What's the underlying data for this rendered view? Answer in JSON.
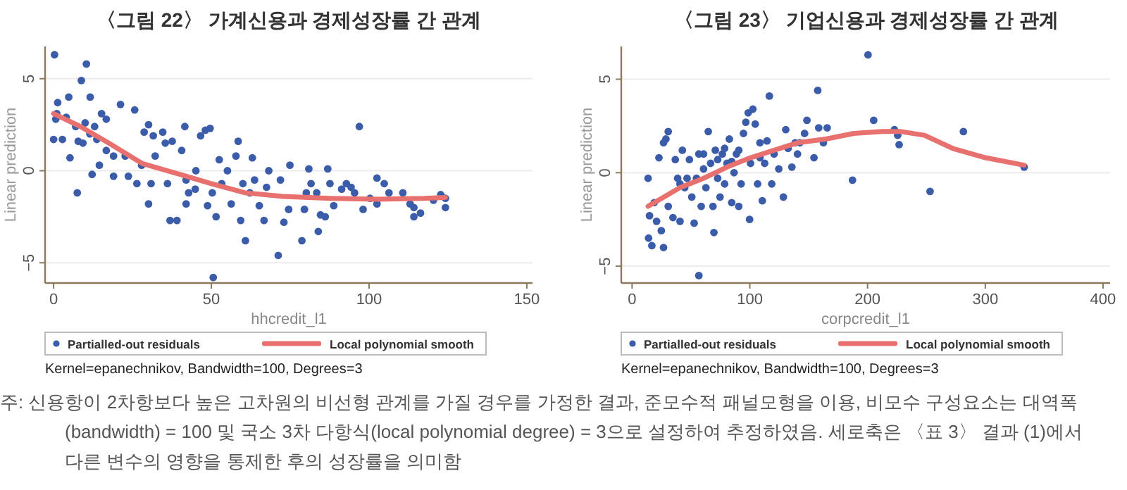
{
  "chart_data": [
    {
      "type": "scatter",
      "title": "〈그림 22〉 가계신용과 경제성장률 간 관계",
      "xlabel": "hhcredit_l1",
      "ylabel": "Linear prediction",
      "xlim": [
        -2.7,
        151.8
      ],
      "ylim": [
        -6.1,
        6.75
      ],
      "xticks": [
        0,
        50,
        100,
        150
      ],
      "yticks": [
        -5,
        0,
        5
      ],
      "grid": "y",
      "legend": "bottom",
      "series": [
        {
          "name": "Partialled-out residuals",
          "marker": "circle",
          "color": "#3b5ca8",
          "x": [
            0.3,
            10.4,
            8.8,
            1.3,
            4.8,
            11.6,
            21.2,
            25.7,
            0,
            0.7,
            2.8,
            5.2,
            7.5,
            7.8,
            10,
            13,
            15.2,
            16.7,
            14.5,
            12.2,
            19,
            19,
            16.7,
            22.7,
            23.7,
            26.4,
            27.9,
            28.7,
            30.1,
            31.6,
            30.1,
            30.9,
            34.6,
            35.4,
            32.2,
            36.1,
            36.9,
            39.1,
            37.6,
            40.6,
            41.6,
            42,
            42.8,
            42,
            45.1,
            46.6,
            48.1,
            49.6,
            44.9,
            48.8,
            50.3,
            50.6,
            51.5,
            52.5,
            53.3,
            55.1,
            56.3,
            58.5,
            57.8,
            59.3,
            60.8,
            60,
            62.2,
            63,
            63.7,
            65.2,
            66.7,
            67.5,
            68.2,
            71.2,
            71.9,
            73,
            74.5,
            74.9,
            78.7,
            79.5,
            80.1,
            80.9,
            81.6,
            83.4,
            83.9,
            84.6,
            86.1,
            86.9,
            87.6,
            88.8,
            91.3,
            92.8,
            94.3,
            95.4,
            96.9,
            98.1,
            100.3,
            102.5,
            102.5,
            104.8,
            106.3,
            110.7,
            113,
            114.2,
            114.2,
            116.3,
            120.4,
            122.7,
            124.2,
            124.2,
            4,
            7,
            9.3,
            11.5,
            13.7,
            1
          ],
          "values": [
            6.3,
            5.8,
            4.9,
            3.7,
            4.0,
            4.0,
            3.6,
            3.3,
            1.7,
            2.8,
            1.7,
            0.7,
            -1.2,
            1.6,
            2.6,
            2.4,
            3.1,
            2.8,
            0.3,
            -0.2,
            -0.3,
            0.8,
            1.1,
            0.8,
            -0.3,
            -0.7,
            0.3,
            2.1,
            2.5,
            1.9,
            -1.8,
            -0.7,
            2.1,
            1.5,
            0.8,
            -0.7,
            -2.7,
            -2.7,
            1.6,
            1.1,
            2.4,
            -0.5,
            -1.2,
            -1.8,
            0,
            1.9,
            2.2,
            2.3,
            -1.0,
            -1.9,
            -1.2,
            -5.8,
            -2.5,
            0.6,
            -0.7,
            0,
            -1.8,
            1.6,
            0.8,
            -2.7,
            -3.8,
            -0.7,
            -1.2,
            0.7,
            -0.5,
            -1.9,
            -2.7,
            -0.9,
            0,
            -4.6,
            -0.5,
            -2.8,
            -2.1,
            0.3,
            -3.8,
            -2.1,
            -1.2,
            0.1,
            -0.7,
            -1.2,
            -3.3,
            -2.4,
            -2.5,
            0.1,
            -0.7,
            -1.9,
            -1.0,
            -0.7,
            -0.9,
            -1.2,
            2.4,
            -2.1,
            -1.5,
            -1.8,
            -0.4,
            -0.7,
            -1.2,
            -1.2,
            -1.8,
            -2.5,
            -2.0,
            -2.3,
            -1.6,
            -1.3,
            -2.0,
            -1.5,
            2.9,
            2.4,
            1.5,
            2.0,
            1.7,
            3.1
          ]
        },
        {
          "name": "Local polynomial smooth",
          "type": "line",
          "color": "#e8706e",
          "x": [
            0,
            8.5,
            17.5,
            28,
            40,
            50,
            60.7,
            72.7,
            87.6,
            102.5,
            117.5,
            124.2
          ],
          "values": [
            3.1,
            2.4,
            1.5,
            0.4,
            -0.2,
            -0.7,
            -1.2,
            -1.4,
            -1.5,
            -1.55,
            -1.5,
            -1.45
          ]
        }
      ],
      "annotations": [
        "Kernel=epanechnikov,  Bandwidth=100,  Degrees=3",
        "주: 신용항이 2차항보다 높은 고차원의 비선형 관계를 가질 경우를 가정한 결과, 준모수적 패널모형을 이용, 비모수 구성요소는 대역폭 (bandwidth) = 100 및 국소 3차 다항식(local polynomial degree) = 3으로 설정하여 추정하였음. 세로축은 〈표 3〉 결과 (1)에서 다른 변수의 영향을 통제한 후의 성장률을 의미함"
      ]
    },
    {
      "type": "scatter",
      "title": "〈그림 23〉 기업신용과 경제성장률 간 관계",
      "xlabel": "corpcredit_l1",
      "ylabel": "Linear prediction",
      "xlim": [
        -9.2,
        406
      ],
      "ylim": [
        -5.9,
        6.75
      ],
      "xticks": [
        0,
        100,
        200,
        300,
        400
      ],
      "yticks": [
        -5,
        0,
        5
      ],
      "grid": "y",
      "legend": "bottom",
      "series": [
        {
          "name": "Partialled-out residuals",
          "marker": "circle",
          "color": "#3b5ca8",
          "x": [
            13.6,
            14.8,
            14,
            16.8,
            18.8,
            20.8,
            22.8,
            24.8,
            26.7,
            26.7,
            28.7,
            30.7,
            30.7,
            34.7,
            36.7,
            38.7,
            40.7,
            42.7,
            44.7,
            48.7,
            50.7,
            52.7,
            54.7,
            56.7,
            56.7,
            58.7,
            60.7,
            62.7,
            64.7,
            66.7,
            68.7,
            69.5,
            70.7,
            72.7,
            74.7,
            76.7,
            78.6,
            80.6,
            82.6,
            84.6,
            86.6,
            88.6,
            90.6,
            92.6,
            94.6,
            96.6,
            98.6,
            99.8,
            100.6,
            102.6,
            104.6,
            106.6,
            108.6,
            110.6,
            112.6,
            114.6,
            116.6,
            118.6,
            120.6,
            124.6,
            128.5,
            130.5,
            132.5,
            135.7,
            138.5,
            140.5,
            142.5,
            146.5,
            148.5,
            154.5,
            157.7,
            158.5,
            162.5,
            165.7,
            187.2,
            200.4,
            205.2,
            222.8,
            225.6,
            226.8,
            253.1,
            281.4,
            333,
            40.7,
            46.7,
            60.7,
            72.7,
            78.6,
            84.6,
            90.6,
            108.6
          ],
          "values": [
            -0.3,
            -2.3,
            -3.5,
            -3.9,
            -1.6,
            -2.6,
            0.8,
            -3.1,
            -4.0,
            1.6,
            1.8,
            2.2,
            -1.8,
            -2.4,
            0.7,
            -0.3,
            -2.6,
            1.2,
            -0.8,
            0.7,
            -1.3,
            -2.7,
            -0.3,
            -5.5,
            1.0,
            -1.8,
            0.2,
            -0.8,
            2.2,
            0.5,
            -1.8,
            -3.2,
            1.2,
            -0.3,
            -1.3,
            1.0,
            -0.6,
            0.5,
            1.8,
            -1.6,
            0,
            1.0,
            -1.8,
            -0.6,
            2.1,
            2.7,
            3.2,
            -2.5,
            0.5,
            3.4,
            2.6,
            -0.6,
            1.6,
            -1.5,
            0.5,
            1.7,
            4.1,
            -0.6,
            1.0,
            0.2,
            -1.3,
            2.3,
            1.3,
            0.3,
            1.6,
            1.0,
            1.6,
            2.1,
            2.8,
            0.8,
            4.4,
            2.4,
            1.6,
            2.4,
            -0.4,
            6.3,
            2.8,
            2.3,
            2.0,
            1.5,
            -1.0,
            2.2,
            0.3,
            -0.6,
            -0.3,
            1.0,
            0.7,
            1.3,
            0.6,
            1.2,
            0.8
          ]
        },
        {
          "name": "Local polynomial smooth",
          "type": "line",
          "color": "#e8706e",
          "x": [
            13.6,
            40.7,
            60.7,
            80.6,
            100.6,
            120.6,
            140.5,
            164.5,
            188.4,
            212.4,
            228.3,
            248.3,
            272.3,
            300.2,
            333
          ],
          "values": [
            -1.8,
            -0.8,
            -0.3,
            0.3,
            0.8,
            1.2,
            1.6,
            1.8,
            2.1,
            2.2,
            2.2,
            2.0,
            1.3,
            0.8,
            0.4
          ]
        }
      ],
      "annotations": [
        "Kernel=epanechnikov,  Bandwidth=100,  Degrees=3"
      ]
    }
  ]
}
